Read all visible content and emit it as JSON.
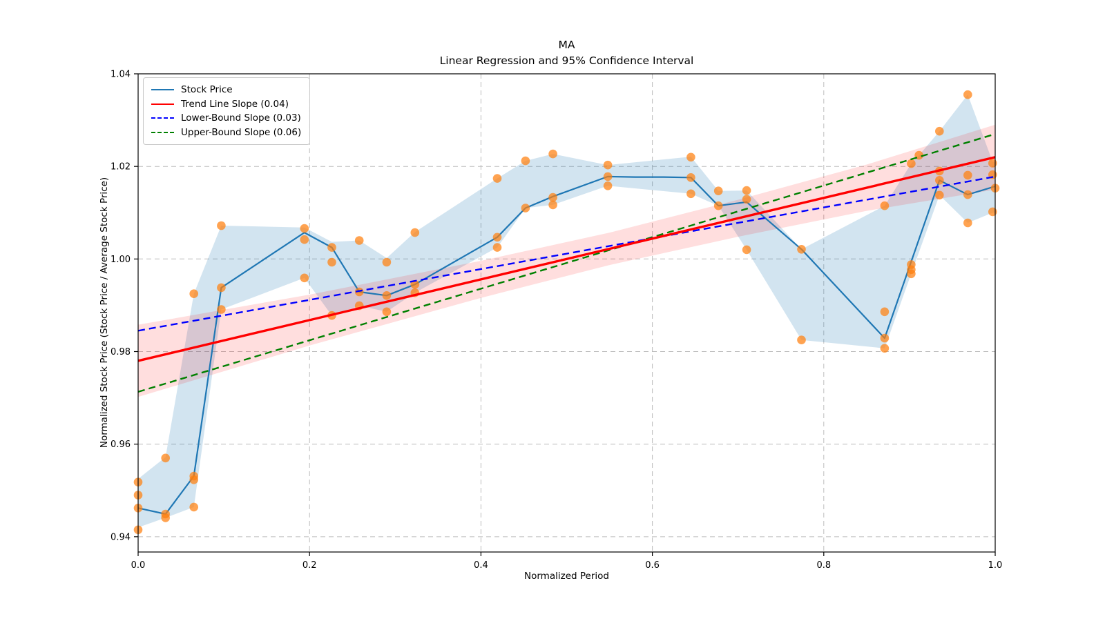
{
  "figure": {
    "title": "MA",
    "subtitle": "Linear Regression and 95% Confidence Interval",
    "xlabel": "Normalized Period",
    "ylabel": "Normalized Stock Price (Stock Price / Average Stock Price)"
  },
  "legend": {
    "position": "upper left",
    "items": [
      {
        "label": "Stock Price",
        "color": "#1f77b4",
        "dash": "solid"
      },
      {
        "label": "Trend Line Slope (0.04)",
        "color": "#ff0000",
        "dash": "solid"
      },
      {
        "label": "Lower-Bound Slope (0.03)",
        "color": "#0000ff",
        "dash": "dashed"
      },
      {
        "label": "Upper-Bound Slope (0.06)",
        "color": "#008000",
        "dash": "dashed"
      }
    ]
  },
  "chart_data": {
    "type": "line",
    "title": "MA",
    "subtitle": "Linear Regression and 95% Confidence Interval",
    "xlabel": "Normalized Period",
    "ylabel": "Normalized Stock Price (Stock Price / Average Stock Price)",
    "xlim": [
      0.0,
      1.0
    ],
    "ylim": [
      0.9367,
      1.04
    ],
    "grid": true,
    "legend_position": "upper left",
    "xticks": {
      "values": [
        0.0,
        0.2,
        0.4,
        0.6,
        0.8,
        1.0
      ],
      "labels": [
        "0.0",
        "0.2",
        "0.4",
        "0.6",
        "0.8",
        "1.0"
      ]
    },
    "yticks": {
      "values": [
        0.94,
        0.96,
        0.98,
        1.0,
        1.02,
        1.04
      ],
      "labels": [
        "0.94",
        "0.96",
        "0.98",
        "1.00",
        "1.02",
        "1.04"
      ]
    },
    "series": {
      "stock_price_line": {
        "name": "Stock Price",
        "points": [
          [
            0.0,
            0.9462
          ],
          [
            0.032,
            0.9449
          ],
          [
            0.065,
            0.9531
          ],
          [
            0.097,
            0.9938
          ],
          [
            0.194,
            1.0057
          ],
          [
            0.226,
            1.0025
          ],
          [
            0.258,
            0.9929
          ],
          [
            0.29,
            0.9921
          ],
          [
            0.323,
            0.9945
          ],
          [
            0.419,
            1.0047
          ],
          [
            0.452,
            1.011
          ],
          [
            0.484,
            1.0135
          ],
          [
            0.548,
            1.0178
          ],
          [
            0.58,
            1.0177
          ],
          [
            0.613,
            1.0177
          ],
          [
            0.645,
            1.0176
          ],
          [
            0.677,
            1.0115
          ],
          [
            0.71,
            1.0123
          ],
          [
            0.774,
            1.0021
          ],
          [
            0.871,
            0.9829
          ],
          [
            0.935,
            1.017
          ],
          [
            0.968,
            1.0139
          ],
          [
            1.0,
            1.0157
          ]
        ]
      },
      "scatter_points": {
        "name": "raw stock price dots",
        "points": [
          [
            0.0,
            0.9518
          ],
          [
            0.0,
            0.949
          ],
          [
            0.0,
            0.9462
          ],
          [
            0.0,
            0.9415
          ],
          [
            0.032,
            0.957
          ],
          [
            0.032,
            0.9449
          ],
          [
            0.032,
            0.9441
          ],
          [
            0.065,
            0.9925
          ],
          [
            0.065,
            0.9531
          ],
          [
            0.065,
            0.9523
          ],
          [
            0.065,
            0.9464
          ],
          [
            0.097,
            1.0072
          ],
          [
            0.097,
            0.9938
          ],
          [
            0.097,
            0.9891
          ],
          [
            0.194,
            1.0066
          ],
          [
            0.194,
            1.0042
          ],
          [
            0.194,
            0.9959
          ],
          [
            0.226,
            1.0025
          ],
          [
            0.226,
            0.9993
          ],
          [
            0.226,
            0.9878
          ],
          [
            0.258,
            1.004
          ],
          [
            0.258,
            0.9929
          ],
          [
            0.258,
            0.9899
          ],
          [
            0.29,
            0.9993
          ],
          [
            0.29,
            0.9921
          ],
          [
            0.29,
            0.9886
          ],
          [
            0.323,
            1.0057
          ],
          [
            0.323,
            0.9945
          ],
          [
            0.323,
            0.9927
          ],
          [
            0.419,
            1.0174
          ],
          [
            0.419,
            1.0047
          ],
          [
            0.419,
            1.0025
          ],
          [
            0.452,
            1.0212
          ],
          [
            0.452,
            1.011
          ],
          [
            0.484,
            1.0227
          ],
          [
            0.484,
            1.0133
          ],
          [
            0.484,
            1.0117
          ],
          [
            0.548,
            1.0203
          ],
          [
            0.548,
            1.0178
          ],
          [
            0.548,
            1.0158
          ],
          [
            0.645,
            1.022
          ],
          [
            0.645,
            1.0176
          ],
          [
            0.645,
            1.0141
          ],
          [
            0.677,
            1.0147
          ],
          [
            0.677,
            1.0115
          ],
          [
            0.71,
            1.0148
          ],
          [
            0.71,
            1.0129
          ],
          [
            0.71,
            1.002
          ],
          [
            0.774,
            1.0021
          ],
          [
            0.774,
            0.9825
          ],
          [
            0.871,
            1.0115
          ],
          [
            0.871,
            0.9886
          ],
          [
            0.871,
            0.9829
          ],
          [
            0.871,
            0.9807
          ],
          [
            0.902,
            1.0206
          ],
          [
            0.902,
            0.9988
          ],
          [
            0.902,
            0.9977
          ],
          [
            0.902,
            0.9968
          ],
          [
            0.911,
            1.0224
          ],
          [
            0.935,
            1.0276
          ],
          [
            0.935,
            1.019
          ],
          [
            0.935,
            1.017
          ],
          [
            0.935,
            1.0138
          ],
          [
            0.968,
            1.0355
          ],
          [
            0.968,
            1.0181
          ],
          [
            0.968,
            1.0139
          ],
          [
            0.968,
            1.0078
          ],
          [
            0.997,
            1.0207
          ],
          [
            0.997,
            1.0182
          ],
          [
            0.997,
            1.0102
          ],
          [
            1.0,
            1.0153
          ]
        ]
      },
      "stock_band": {
        "name": "stock price min-max envelope",
        "upper": [
          [
            0.0,
            0.9525
          ],
          [
            0.032,
            0.9572
          ],
          [
            0.065,
            0.9925
          ],
          [
            0.097,
            1.0072
          ],
          [
            0.194,
            1.0068
          ],
          [
            0.226,
            1.0037
          ],
          [
            0.258,
            1.004
          ],
          [
            0.29,
            1.0002
          ],
          [
            0.323,
            1.0058
          ],
          [
            0.419,
            1.0174
          ],
          [
            0.452,
            1.0212
          ],
          [
            0.484,
            1.0227
          ],
          [
            0.548,
            1.0203
          ],
          [
            0.645,
            1.0221
          ],
          [
            0.677,
            1.0147
          ],
          [
            0.71,
            1.0148
          ],
          [
            0.774,
            1.0021
          ],
          [
            0.871,
            1.0115
          ],
          [
            0.902,
            1.0206
          ],
          [
            0.911,
            1.0224
          ],
          [
            0.935,
            1.0276
          ],
          [
            0.968,
            1.0355
          ],
          [
            0.997,
            1.021
          ],
          [
            1.0,
            1.021
          ]
        ],
        "lower": [
          [
            0.0,
            0.942
          ],
          [
            0.032,
            0.9441
          ],
          [
            0.065,
            0.9464
          ],
          [
            0.097,
            0.9891
          ],
          [
            0.194,
            0.9959
          ],
          [
            0.226,
            0.9878
          ],
          [
            0.258,
            0.9899
          ],
          [
            0.29,
            0.9886
          ],
          [
            0.323,
            0.9927
          ],
          [
            0.419,
            1.0025
          ],
          [
            0.452,
            1.011
          ],
          [
            0.484,
            1.0117
          ],
          [
            0.548,
            1.0158
          ],
          [
            0.645,
            1.0141
          ],
          [
            0.677,
            1.0115
          ],
          [
            0.71,
            1.002
          ],
          [
            0.774,
            0.9825
          ],
          [
            0.871,
            0.9807
          ],
          [
            0.902,
            0.9968
          ],
          [
            0.935,
            1.0138
          ],
          [
            0.968,
            1.0078
          ],
          [
            0.997,
            1.01
          ],
          [
            1.0,
            1.01
          ]
        ]
      },
      "confidence_band": {
        "name": "95% confidence interval of trend line",
        "upper": [
          [
            0.0,
            0.9858
          ],
          [
            0.2,
            0.9923
          ],
          [
            0.4,
            0.9996
          ],
          [
            0.55,
            1.0057
          ],
          [
            0.7,
            1.0128
          ],
          [
            0.85,
            1.0204
          ],
          [
            1.0,
            1.029
          ]
        ],
        "lower": [
          [
            0.0,
            0.9702
          ],
          [
            0.2,
            0.9813
          ],
          [
            0.4,
            0.9916
          ],
          [
            0.55,
            0.9987
          ],
          [
            0.7,
            1.0048
          ],
          [
            0.85,
            1.0104
          ],
          [
            1.0,
            1.015
          ]
        ]
      },
      "trend_line": {
        "name": "Trend Line Slope (0.04)",
        "slope": 0.04,
        "x": [
          0.0,
          1.0
        ],
        "y": [
          0.978,
          1.022
        ]
      },
      "lower_bound_line": {
        "name": "Lower-Bound Slope (0.03)",
        "slope": 0.03,
        "x": [
          0.0,
          1.0
        ],
        "y": [
          0.9845,
          1.0178
        ]
      },
      "upper_bound_line": {
        "name": "Upper-Bound Slope (0.06)",
        "slope": 0.06,
        "x": [
          0.0,
          1.0
        ],
        "y": [
          0.9713,
          1.027
        ]
      }
    },
    "colors": {
      "stock_line": "#1f77b4",
      "scatter": "#ff7f0e",
      "trend_line": "#ff0000",
      "lower_bound_line": "#0000ff",
      "upper_bound_line": "#008000",
      "stock_band_fill": "rgba(31,119,180,0.20)",
      "confidence_band_fill": "rgba(255,0,0,0.13)",
      "grid": "#bcbcbc",
      "spine": "#000000",
      "text": "#000000"
    }
  }
}
